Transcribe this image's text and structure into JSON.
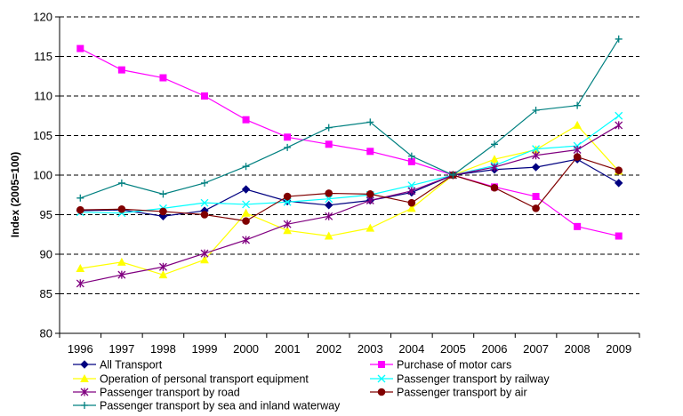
{
  "chart_data": {
    "type": "line",
    "ylabel": "Index (2005=100)",
    "xlabel": "",
    "title": "",
    "ylim": [
      80,
      120
    ],
    "yticks": [
      80,
      85,
      90,
      95,
      100,
      105,
      110,
      115,
      120
    ],
    "grid": "horizontal dashed",
    "legend_position": "bottom",
    "categories": [
      "1996",
      "1997",
      "1998",
      "1999",
      "2000",
      "2001",
      "2002",
      "2003",
      "2004",
      "2005",
      "2006",
      "2007",
      "2008",
      "2009"
    ],
    "series": [
      {
        "name": "All Transport",
        "color": "#000080",
        "marker": "diamond",
        "values": [
          95.5,
          95.6,
          94.8,
          95.5,
          98.2,
          96.7,
          96.2,
          96.8,
          97.8,
          100.0,
          100.7,
          101.0,
          102.0,
          99.0
        ]
      },
      {
        "name": "Purchase of motor cars",
        "color": "#FF00FF",
        "marker": "square",
        "values": [
          116.0,
          113.3,
          112.3,
          110.0,
          107.0,
          104.8,
          103.9,
          103.0,
          101.7,
          100.0,
          98.5,
          97.3,
          93.5,
          92.3
        ]
      },
      {
        "name": "Operation of personal transport equipment",
        "color": "#FFFF00",
        "marker": "triangle",
        "values": [
          88.2,
          89.0,
          87.4,
          89.3,
          95.2,
          93.0,
          92.3,
          93.3,
          95.8,
          100.0,
          102.0,
          103.2,
          106.3,
          100.5
        ]
      },
      {
        "name": "Passenger transport by railway",
        "color": "#00FFFF",
        "marker": "x",
        "values": [
          95.3,
          95.2,
          95.8,
          96.5,
          96.3,
          96.6,
          97.0,
          97.5,
          98.7,
          100.0,
          101.2,
          103.3,
          103.7,
          107.5
        ]
      },
      {
        "name": "Passenger transport by road",
        "color": "#800080",
        "marker": "star",
        "values": [
          86.3,
          87.4,
          88.4,
          90.1,
          91.8,
          93.8,
          94.8,
          96.8,
          98.0,
          100.0,
          101.0,
          102.5,
          103.2,
          106.3
        ]
      },
      {
        "name": "Passenger transport by air",
        "color": "#800000",
        "marker": "circle",
        "values": [
          95.6,
          95.7,
          95.4,
          95.0,
          94.2,
          97.3,
          97.7,
          97.6,
          96.5,
          100.0,
          98.4,
          95.8,
          102.3,
          100.6
        ]
      },
      {
        "name": "Passenger transport by sea and inland waterway",
        "color": "#008080",
        "marker": "plus",
        "values": [
          97.1,
          99.0,
          97.6,
          99.0,
          101.1,
          103.5,
          106.0,
          106.7,
          102.4,
          100.0,
          103.9,
          108.2,
          108.8,
          117.2
        ]
      }
    ]
  }
}
